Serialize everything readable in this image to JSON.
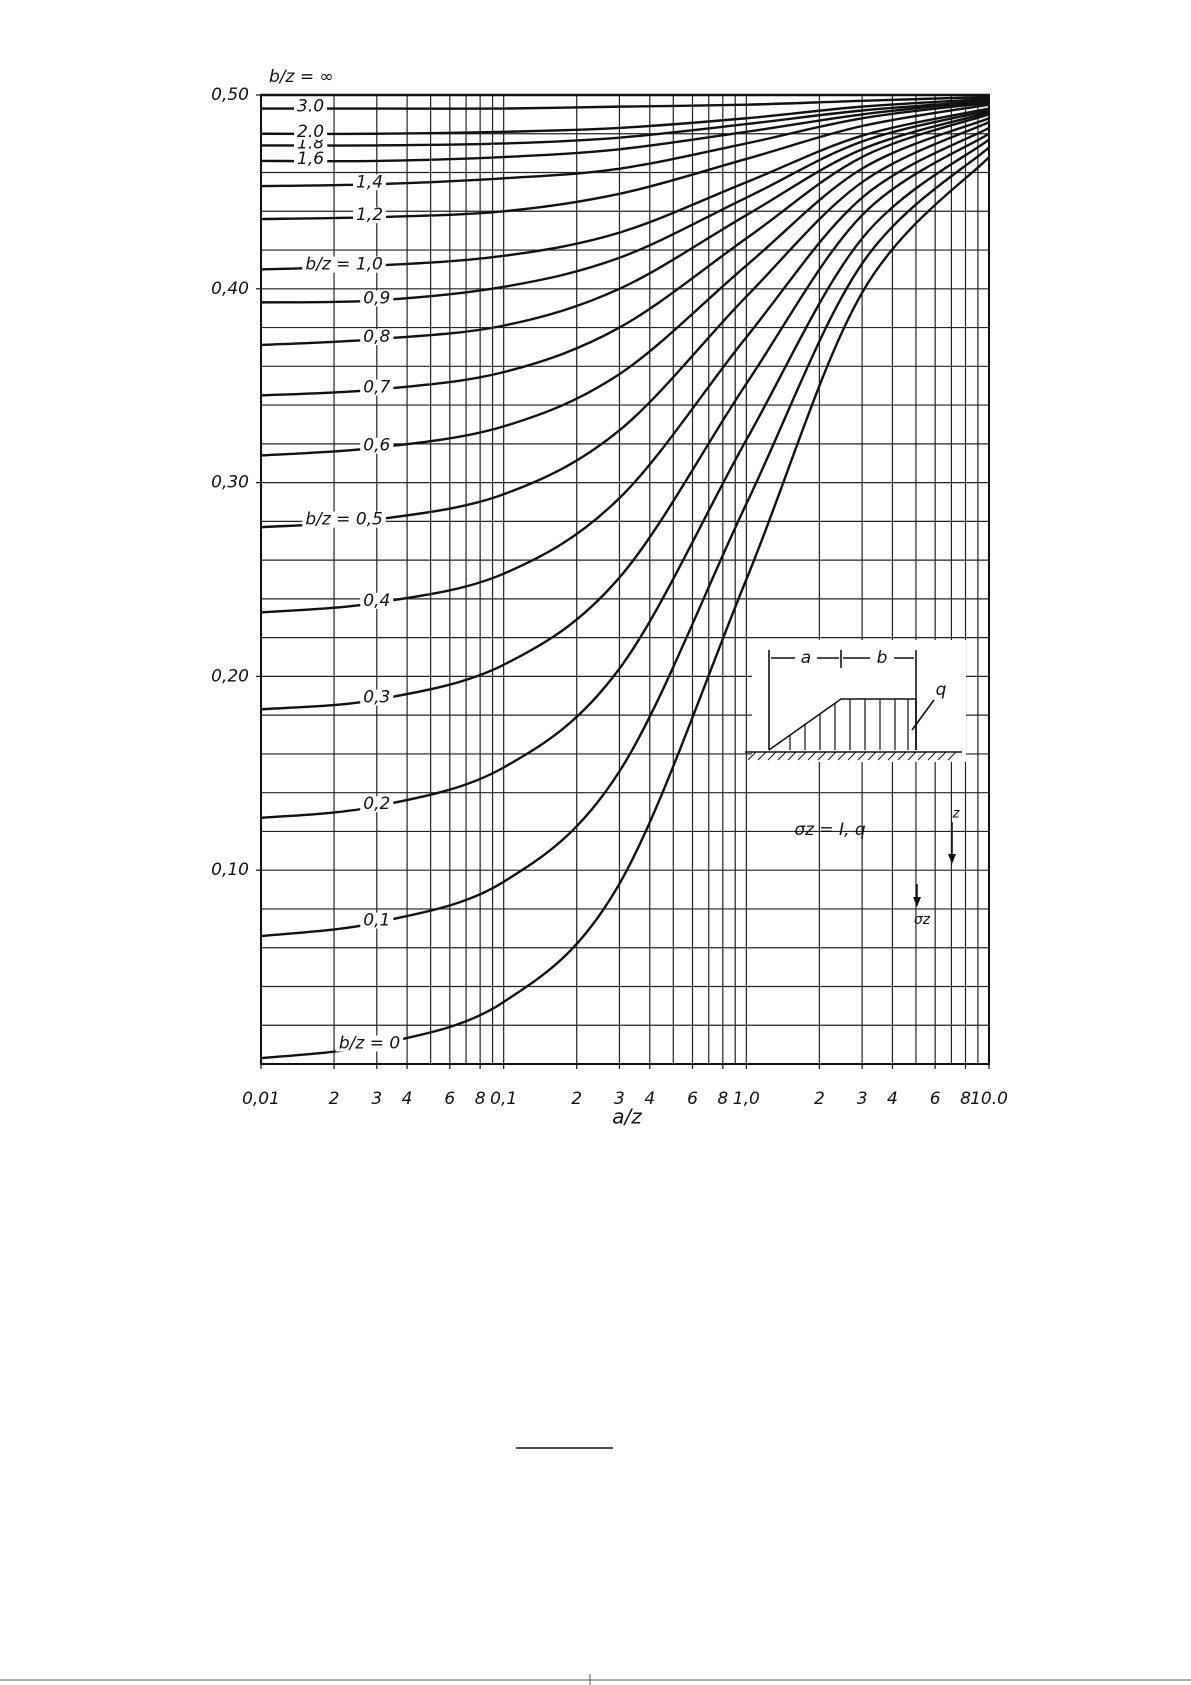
{
  "chart_data": {
    "type": "line",
    "xscale": "log",
    "grid": true,
    "color": "#111111",
    "xlabel": "a/z",
    "x": [
      0.01,
      0.03,
      0.1,
      0.3,
      1,
      3,
      10
    ],
    "xlim": [
      0.01,
      10
    ],
    "ylim": [
      0,
      0.5
    ],
    "xticks": [
      {
        "value": 0.01,
        "label": "0,01"
      },
      {
        "value": 0.02,
        "label": "2"
      },
      {
        "value": 0.03,
        "label": "3"
      },
      {
        "value": 0.04,
        "label": "4"
      },
      {
        "value": 0.06,
        "label": "6"
      },
      {
        "value": 0.08,
        "label": "8"
      },
      {
        "value": 0.1,
        "label": "0,1"
      },
      {
        "value": 0.2,
        "label": "2"
      },
      {
        "value": 0.3,
        "label": "3"
      },
      {
        "value": 0.4,
        "label": "4"
      },
      {
        "value": 0.6,
        "label": "6"
      },
      {
        "value": 0.8,
        "label": "8"
      },
      {
        "value": 1,
        "label": "1,0"
      },
      {
        "value": 2,
        "label": "2"
      },
      {
        "value": 3,
        "label": "3"
      },
      {
        "value": 4,
        "label": "4"
      },
      {
        "value": 6,
        "label": "6"
      },
      {
        "value": 8,
        "label": "8"
      },
      {
        "value": 10,
        "label": "10.0"
      }
    ],
    "yticks": [
      {
        "value": 0.1,
        "label": "0,10"
      },
      {
        "value": 0.2,
        "label": "0,20"
      },
      {
        "value": 0.3,
        "label": "0,30"
      },
      {
        "value": 0.4,
        "label": "0,40"
      },
      {
        "value": 0.5,
        "label": "0,50"
      }
    ],
    "xgrid": [
      0.01,
      0.02,
      0.03,
      0.04,
      0.05,
      0.06,
      0.07,
      0.08,
      0.09,
      0.1,
      0.2,
      0.3,
      0.4,
      0.5,
      0.6,
      0.7,
      0.8,
      0.9,
      1,
      2,
      3,
      4,
      5,
      6,
      7,
      8,
      9,
      10
    ],
    "ygrid": [
      0,
      0.02,
      0.04,
      0.06,
      0.08,
      0.1,
      0.12,
      0.14,
      0.16,
      0.18,
      0.2,
      0.22,
      0.24,
      0.26,
      0.28,
      0.3,
      0.32,
      0.34,
      0.36,
      0.38,
      0.4,
      0.42,
      0.44,
      0.46,
      0.48,
      0.5
    ],
    "series": [
      {
        "name": "b/z = 0",
        "values": [
          0.003,
          0.01,
          0.032,
          0.093,
          0.25,
          0.398,
          0.468
        ]
      },
      {
        "name": "0,1",
        "values": [
          0.066,
          0.073,
          0.094,
          0.151,
          0.289,
          0.413,
          0.473
        ]
      },
      {
        "name": "0,2",
        "values": [
          0.127,
          0.133,
          0.153,
          0.204,
          0.322,
          0.426,
          0.477
        ]
      },
      {
        "name": "0,3",
        "values": [
          0.183,
          0.188,
          0.206,
          0.251,
          0.351,
          0.438,
          0.48
        ]
      },
      {
        "name": "0,4",
        "values": [
          0.233,
          0.238,
          0.253,
          0.292,
          0.375,
          0.447,
          0.483
        ]
      },
      {
        "name": "b/z = 0,5",
        "values": [
          0.277,
          0.281,
          0.294,
          0.327,
          0.396,
          0.455,
          0.486
        ]
      },
      {
        "name": "0,6",
        "values": [
          0.314,
          0.318,
          0.329,
          0.356,
          0.412,
          0.462,
          0.488
        ]
      },
      {
        "name": "0,7",
        "values": [
          0.345,
          0.348,
          0.357,
          0.38,
          0.426,
          0.468,
          0.49
        ]
      },
      {
        "name": "0,8",
        "values": [
          0.371,
          0.374,
          0.381,
          0.4,
          0.438,
          0.472,
          0.491
        ]
      },
      {
        "name": "0,9",
        "values": [
          0.393,
          0.394,
          0.401,
          0.416,
          0.447,
          0.476,
          0.492
        ]
      },
      {
        "name": "b/z = 1,0",
        "values": [
          0.41,
          0.412,
          0.417,
          0.429,
          0.455,
          0.479,
          0.493
        ]
      },
      {
        "name": "1,2",
        "values": [
          0.436,
          0.437,
          0.44,
          0.449,
          0.467,
          0.484,
          0.495
        ]
      },
      {
        "name": "1,4",
        "values": [
          0.453,
          0.454,
          0.457,
          0.462,
          0.475,
          0.488,
          0.496
        ]
      },
      {
        "name": "1,6",
        "values": [
          0.466,
          0.466,
          0.468,
          0.472,
          0.481,
          0.49,
          0.497
        ]
      },
      {
        "name": "1.8",
        "values": [
          0.474,
          0.474,
          0.475,
          0.478,
          0.485,
          0.492,
          0.497
        ]
      },
      {
        "name": "2.0",
        "values": [
          0.48,
          0.48,
          0.481,
          0.483,
          0.488,
          0.494,
          0.498
        ]
      },
      {
        "name": "3.0",
        "values": [
          0.493,
          0.493,
          0.493,
          0.494,
          0.495,
          0.497,
          0.499
        ]
      },
      {
        "name": "b/z = ∞",
        "values": [
          0.5,
          0.5,
          0.5,
          0.5,
          0.5,
          0.5,
          0.5
        ]
      }
    ],
    "annotations": [
      "a",
      "b",
      "q",
      "σz = I, q",
      "z",
      "σz"
    ]
  }
}
